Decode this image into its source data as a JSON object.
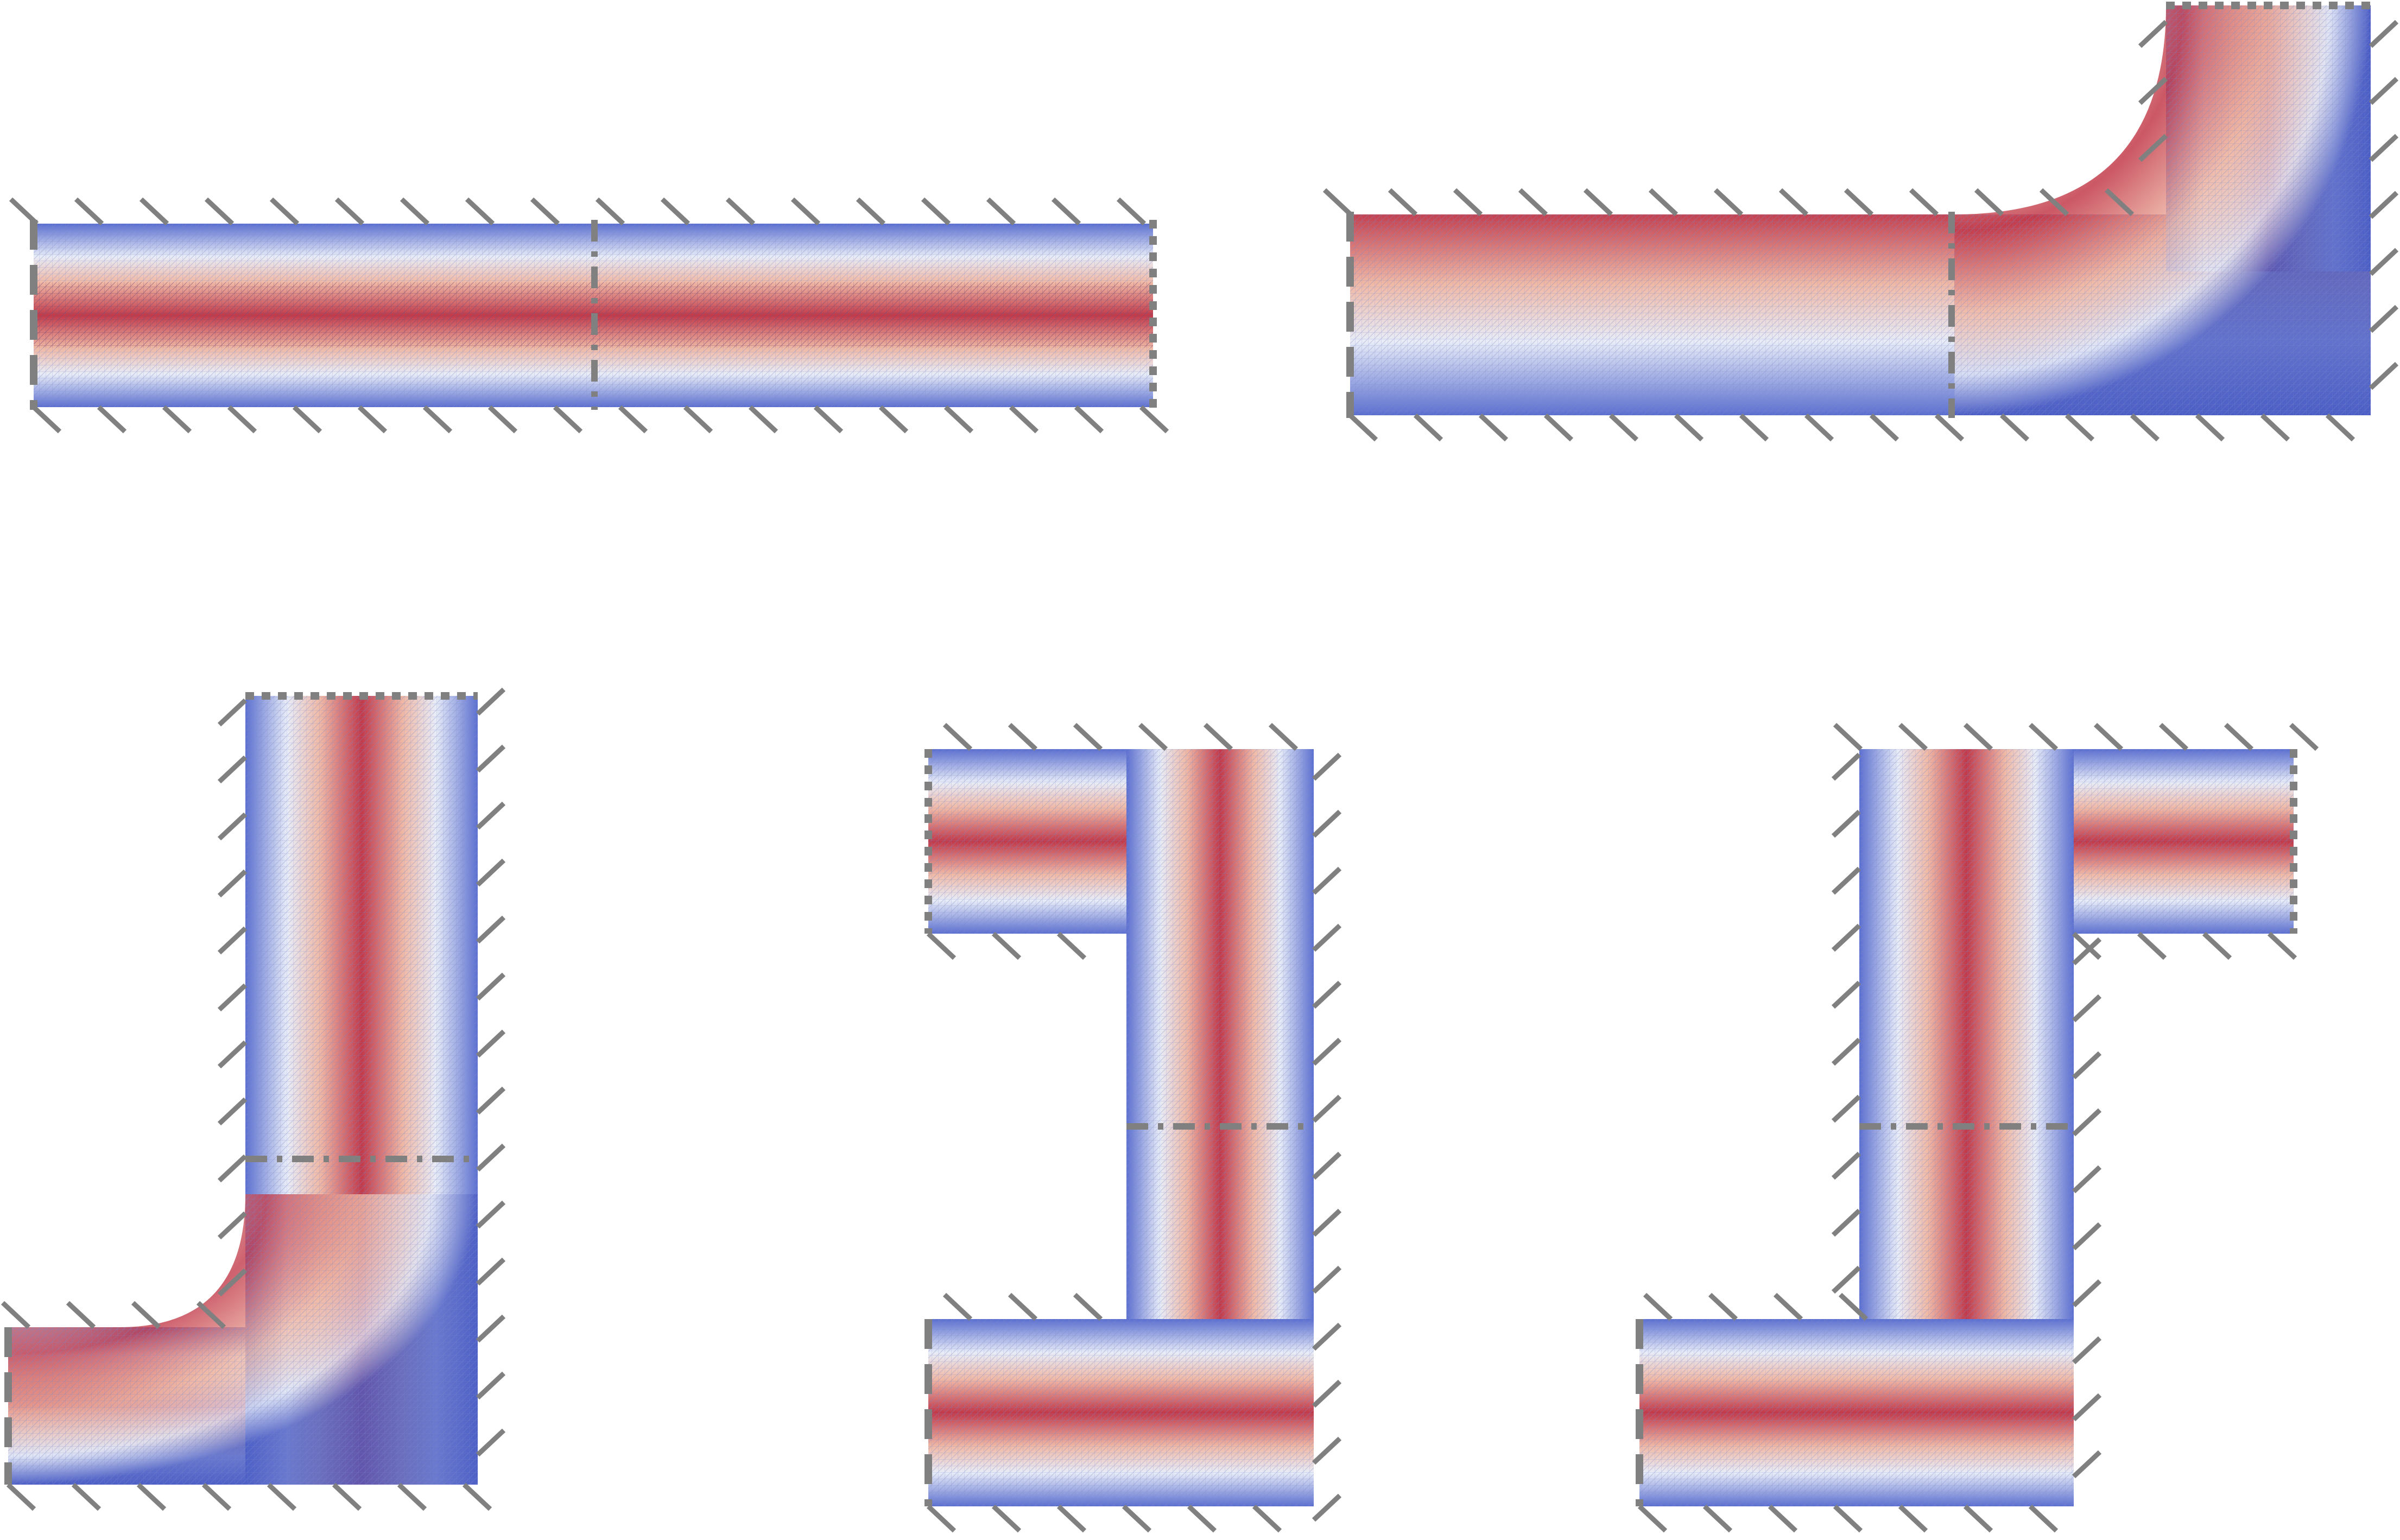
{
  "figure": {
    "description_colors": {
      "low": "#3b4cc0",
      "mid": "#f2f0ef",
      "high": "#b40426",
      "wall": "#808080",
      "mesh": "#8da0cb"
    },
    "panels": [
      {
        "id": "straight-channel",
        "shape": "straight",
        "walls": [
          "top",
          "bottom"
        ],
        "boundaries": [
          "inlet-left",
          "interface-middle",
          "outlet-right"
        ]
      },
      {
        "id": "l-bend-up",
        "shape": "L-bend",
        "walls": [
          "outer",
          "inner"
        ],
        "boundaries": [
          "inlet-left",
          "interface-middle",
          "outlet-top"
        ]
      },
      {
        "id": "l-bend-left",
        "shape": "L-bend",
        "walls": [
          "outer",
          "inner"
        ],
        "boundaries": [
          "inlet-left",
          "interface-middle",
          "outlet-top"
        ]
      },
      {
        "id": "u-bend",
        "shape": "U-bend",
        "walls": [
          "outer",
          "inner"
        ],
        "boundaries": [
          "inlet-left-lower",
          "interface-middle",
          "outlet-left-upper"
        ]
      },
      {
        "id": "s-bend",
        "shape": "S-bend",
        "walls": [
          "outer",
          "inner"
        ],
        "boundaries": [
          "inlet-left",
          "interface-middle",
          "outlet-right"
        ]
      }
    ]
  }
}
